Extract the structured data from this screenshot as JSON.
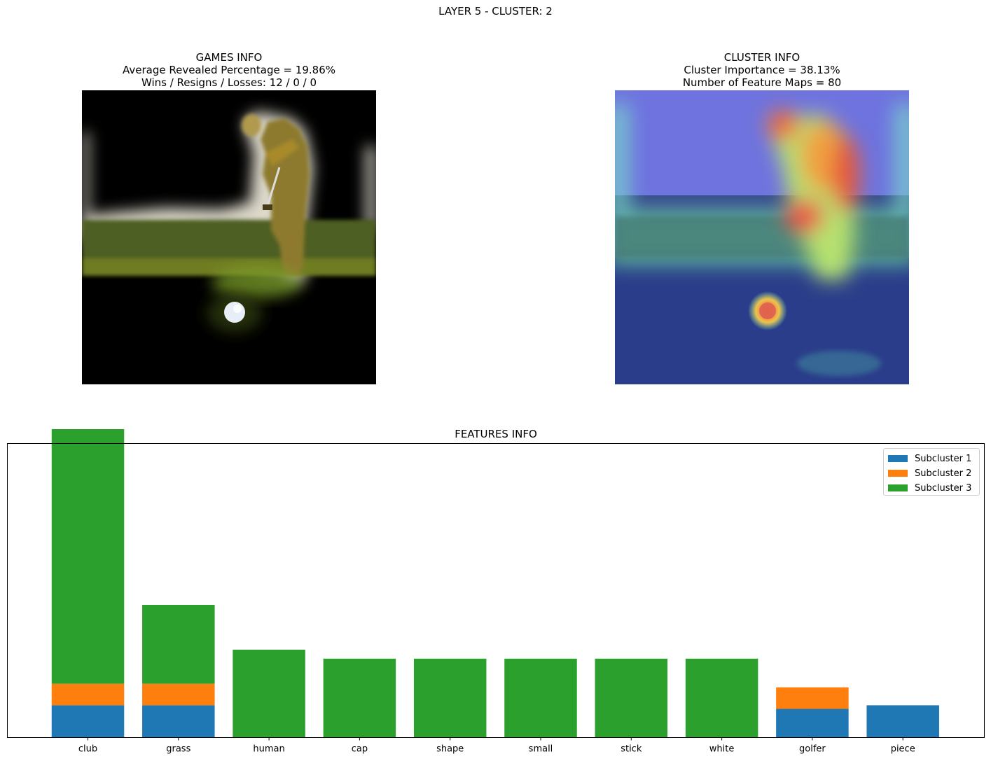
{
  "suptitle": "LAYER 5 - CLUSTER: 2",
  "games_info": {
    "title": "GAMES INFO",
    "line1": "Average Revealed Percentage = 19.86%",
    "line2": "Wins / Resigns / Losses: 12 / 0 / 0"
  },
  "cluster_info": {
    "title": "CLUSTER INFO",
    "line1": "Cluster Importance = 38.13%",
    "line2": "Number of Feature Maps = 80"
  },
  "chart_data": {
    "type": "bar",
    "stacked": true,
    "title": "FEATURES INFO",
    "xlabel": "",
    "ylabel": "",
    "ylim": [
      0,
      8.2
    ],
    "y_ticks_shown": false,
    "legend_position": "top-right",
    "categories": [
      "club",
      "grass",
      "human",
      "cap",
      "shape",
      "small",
      "stick",
      "white",
      "golfer",
      "piece"
    ],
    "series": [
      {
        "name": "Subcluster 1",
        "color": "#1f77b4",
        "values": [
          0.9,
          0.9,
          0,
          0,
          0,
          0,
          0,
          0,
          0.8,
          0.9
        ]
      },
      {
        "name": "Subcluster 2",
        "color": "#ff7f0e",
        "values": [
          0.6,
          0.6,
          0,
          0,
          0,
          0,
          0,
          0,
          0.6,
          0
        ]
      },
      {
        "name": "Subcluster 3",
        "color": "#2ca02c",
        "values": [
          7.1,
          2.2,
          2.45,
          2.2,
          2.2,
          2.2,
          2.2,
          2.2,
          0,
          0
        ]
      }
    ]
  }
}
